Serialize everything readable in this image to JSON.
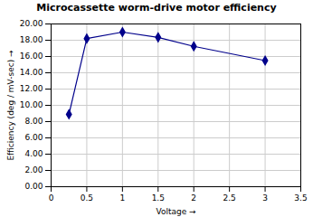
{
  "chart_data": {
    "type": "line",
    "title": "Microcassette worm-drive motor efficiency",
    "xlabel": "Voltage",
    "ylabel": "Efficiency (deg / mV-sec)",
    "x": [
      0.25,
      0.5,
      1.0,
      1.5,
      2.0,
      3.0
    ],
    "values": [
      8.9,
      18.2,
      19.0,
      18.35,
      17.25,
      15.5
    ],
    "color": "#00008B",
    "marker": "diamond",
    "xlim": [
      0,
      3.5
    ],
    "ylim": [
      0,
      20
    ],
    "xticks": [
      0,
      0.5,
      1,
      1.5,
      2,
      2.5,
      3,
      3.5
    ],
    "yticks": [
      {
        "value": 0,
        "label": "0.00"
      },
      {
        "value": 2,
        "label": "2.00"
      },
      {
        "value": 4,
        "label": "4.00"
      },
      {
        "value": 6,
        "label": "6.00"
      },
      {
        "value": 8,
        "label": "8.00"
      },
      {
        "value": 10,
        "label": "10.00"
      },
      {
        "value": 12,
        "label": "12.00"
      },
      {
        "value": 14,
        "label": "14.00"
      },
      {
        "value": 16,
        "label": "16.00"
      },
      {
        "value": 18,
        "label": "18.00"
      },
      {
        "value": 20,
        "label": "20.00"
      }
    ],
    "grid": true
  }
}
